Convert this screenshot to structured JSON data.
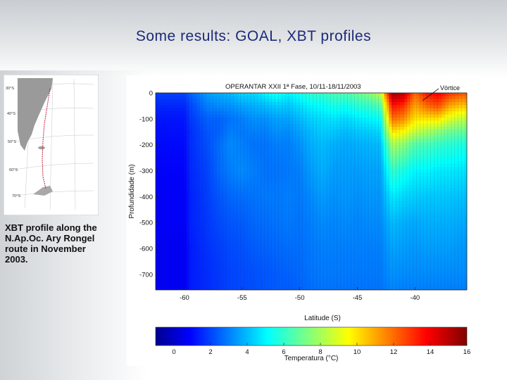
{
  "slide": {
    "title": "Some results: GOAL, XBT profiles",
    "map_caption": "XBT profile along the N.Ap.Oc. Ary Rongel route in November 2003.",
    "map_lat_labels": [
      "30°S",
      "40°S",
      "50°S",
      "60°S",
      "70°S"
    ]
  },
  "chart_data": {
    "type": "heatmap",
    "title": "OPERANTAR XXII 1ª Fase, 10/11-18/11/2003",
    "annotation": "Vórtice",
    "xlabel": "Latitude (S)",
    "ylabel": "Profundidade (m)",
    "x_ticks": [
      -60,
      -55,
      -50,
      -45,
      -40
    ],
    "y_ticks": [
      0,
      -100,
      -200,
      -300,
      -400,
      -500,
      -600,
      -700
    ],
    "xlim": [
      -62.5,
      -35.5
    ],
    "ylim": [
      -760,
      0
    ],
    "colorbar": {
      "label": "Temperatura (°C)",
      "ticks": [
        0,
        2,
        4,
        6,
        8,
        10,
        12,
        14,
        16
      ],
      "range": [
        -1,
        16
      ],
      "colormap": "jet"
    },
    "x": [
      -62,
      -61,
      -60,
      -59.5,
      -58,
      -57,
      -56,
      -55,
      -54,
      -53,
      -52,
      -51,
      -50,
      -49,
      -48,
      -47,
      -46,
      -45,
      -44,
      -43,
      -42,
      -41,
      -40,
      -39,
      -38,
      -37,
      -36
    ],
    "depths": [
      0,
      -50,
      -100,
      -150,
      -200,
      -300,
      -400,
      -500,
      -600,
      -700,
      -760
    ],
    "temperature": [
      [
        2.0,
        1.5,
        1.2,
        1.1,
        1.0,
        0.9,
        0.8,
        0.8,
        0.7,
        0.7,
        0.7
      ],
      [
        2.0,
        1.5,
        1.2,
        1.1,
        1.0,
        0.9,
        0.8,
        0.8,
        0.7,
        0.7,
        0.7
      ],
      [
        2.0,
        1.5,
        1.2,
        1.1,
        1.0,
        0.9,
        0.8,
        0.8,
        0.7,
        0.7,
        0.7
      ],
      [
        2.5,
        2.0,
        1.8,
        1.6,
        1.6,
        1.5,
        1.4,
        1.4,
        1.3,
        1.3,
        1.3
      ],
      [
        3.5,
        3.0,
        2.5,
        2.3,
        2.2,
        2.0,
        1.9,
        1.8,
        1.7,
        1.6,
        1.6
      ],
      [
        3.8,
        3.2,
        2.5,
        2.5,
        2.7,
        2.6,
        2.3,
        2.1,
        1.9,
        1.8,
        1.8
      ],
      [
        4.0,
        3.3,
        2.8,
        3.0,
        3.2,
        3.0,
        2.6,
        2.3,
        2.1,
        2.0,
        2.0
      ],
      [
        4.5,
        3.6,
        3.0,
        2.9,
        3.0,
        3.2,
        2.7,
        2.4,
        2.2,
        2.1,
        2.1
      ],
      [
        4.5,
        3.8,
        3.3,
        3.0,
        2.8,
        3.0,
        2.8,
        2.6,
        2.4,
        2.2,
        2.2
      ],
      [
        5.0,
        4.0,
        3.3,
        3.0,
        2.8,
        2.8,
        2.9,
        2.7,
        2.5,
        2.3,
        2.3
      ],
      [
        5.5,
        4.3,
        3.6,
        3.3,
        3.0,
        2.8,
        2.9,
        2.8,
        2.6,
        2.4,
        2.4
      ],
      [
        5.0,
        4.2,
        3.6,
        3.2,
        3.0,
        2.9,
        3.0,
        2.9,
        2.7,
        2.5,
        2.4
      ],
      [
        5.5,
        4.6,
        4.0,
        3.6,
        3.3,
        3.0,
        2.9,
        2.8,
        2.7,
        2.6,
        2.5
      ],
      [
        6.0,
        5.0,
        4.4,
        4.0,
        3.8,
        3.5,
        3.2,
        3.0,
        2.9,
        2.8,
        2.7
      ],
      [
        6.0,
        5.2,
        4.6,
        4.3,
        4.0,
        3.8,
        3.5,
        3.2,
        3.0,
        2.9,
        2.8
      ],
      [
        6.5,
        5.5,
        4.7,
        4.2,
        3.8,
        3.5,
        3.3,
        3.1,
        3.0,
        2.9,
        2.8
      ],
      [
        6.5,
        5.4,
        4.5,
        4.0,
        3.7,
        3.5,
        3.4,
        3.2,
        3.0,
        2.9,
        2.8
      ],
      [
        7.0,
        5.8,
        4.8,
        4.2,
        3.8,
        3.5,
        3.3,
        3.1,
        3.0,
        2.9,
        2.8
      ],
      [
        7.5,
        6.0,
        5.0,
        4.3,
        3.9,
        3.6,
        3.4,
        3.2,
        3.0,
        2.9,
        2.8
      ],
      [
        8.5,
        6.5,
        5.2,
        4.5,
        4.0,
        3.6,
        3.4,
        3.2,
        3.0,
        2.9,
        2.8
      ],
      [
        15.5,
        13.5,
        12.0,
        10.0,
        8.0,
        6.0,
        4.8,
        4.0,
        3.6,
        3.3,
        3.1
      ],
      [
        15.0,
        13.0,
        11.5,
        9.5,
        7.5,
        5.5,
        4.5,
        3.8,
        3.5,
        3.2,
        3.0
      ],
      [
        12.0,
        11.0,
        10.0,
        8.5,
        6.5,
        5.0,
        4.3,
        3.7,
        3.4,
        3.2,
        3.0
      ],
      [
        13.5,
        12.0,
        10.0,
        8.0,
        6.3,
        5.0,
        4.2,
        3.8,
        3.5,
        3.2,
        3.0
      ],
      [
        14.0,
        12.5,
        10.0,
        7.5,
        6.0,
        4.8,
        4.2,
        3.8,
        3.5,
        3.2,
        3.0
      ],
      [
        13.0,
        11.0,
        9.0,
        7.0,
        5.8,
        4.8,
        4.2,
        3.8,
        3.5,
        3.2,
        3.0
      ],
      [
        12.5,
        10.5,
        8.5,
        6.8,
        5.6,
        4.7,
        4.1,
        3.7,
        3.4,
        3.2,
        3.0
      ]
    ],
    "grid": false
  }
}
